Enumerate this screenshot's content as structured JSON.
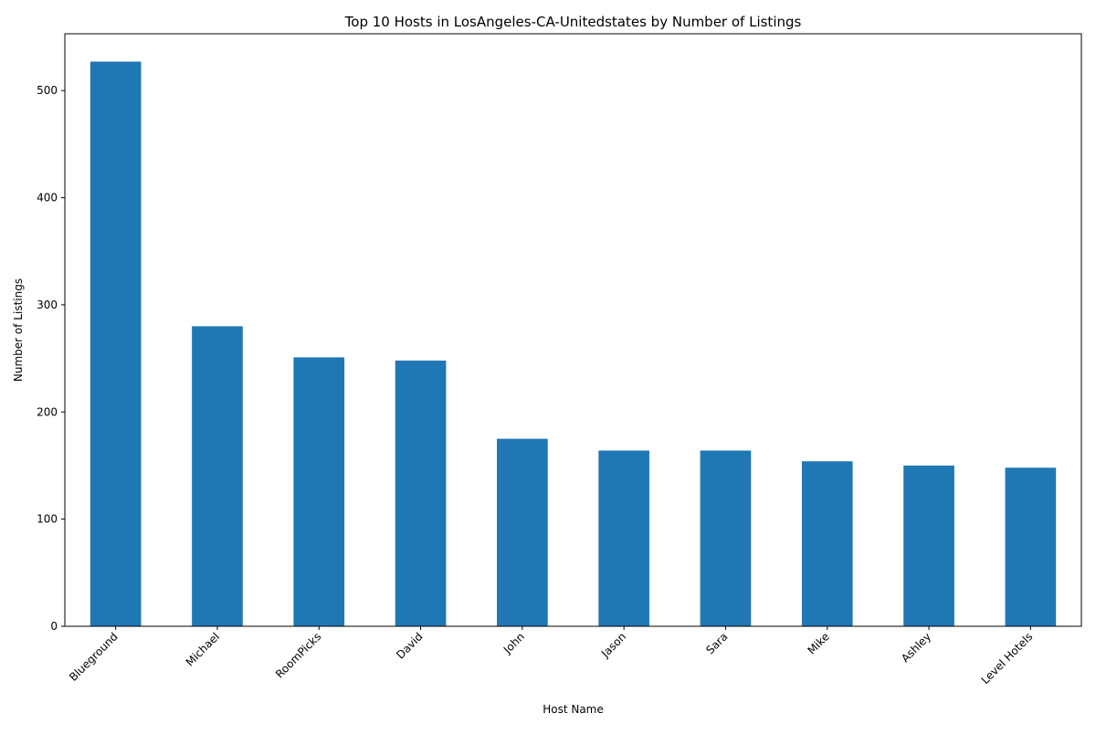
{
  "chart_data": {
    "type": "bar",
    "title": "Top 10 Hosts in LosAngeles-CA-Unitedstates by Number of Listings",
    "xlabel": "Host Name",
    "ylabel": "Number of Listings",
    "categories": [
      "Blueground",
      "Michael",
      "RoomPicks",
      "David",
      "John",
      "Jason",
      "Sara",
      "Mike",
      "Ashley",
      "Level Hotels"
    ],
    "values": [
      527,
      280,
      251,
      248,
      175,
      164,
      164,
      154,
      150,
      148
    ],
    "yticks": [
      0,
      100,
      200,
      300,
      400,
      500
    ],
    "ylim": [
      0,
      553
    ],
    "grid": false,
    "legend": "none",
    "bar_color": "#1f77b4"
  }
}
